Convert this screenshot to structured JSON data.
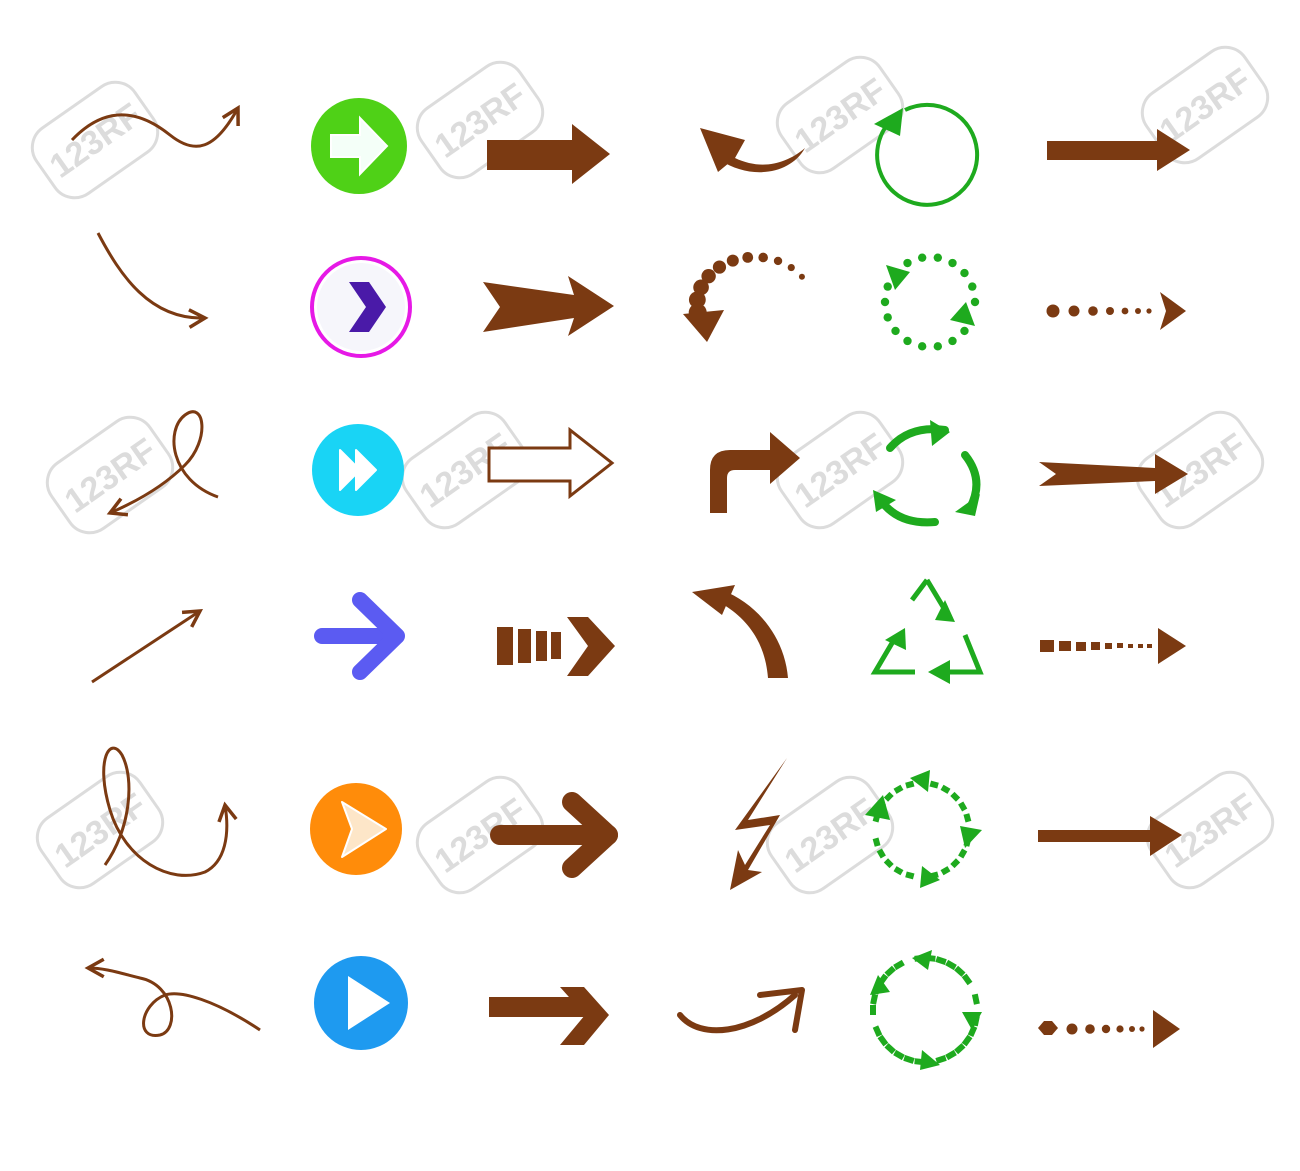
{
  "watermark": {
    "text": "123RF",
    "color": "#d9d9d9"
  },
  "colors": {
    "brown": "#7b3a12",
    "green": "#1eaa1e",
    "lime": "#4fd117",
    "magenta": "#e619e6",
    "indigo": "#4a1aa8",
    "cyan": "#19d4f5",
    "violet": "#5b5bf2",
    "orange": "#ff8c0a",
    "blue": "#1e9af0",
    "white": "#ffffff",
    "pale": "#f4fff8"
  },
  "icons": [
    "wavy-arrow-icon",
    "circle-arrow-green-icon",
    "bold-arrow-icon",
    "curved-back-arrow-icon",
    "circular-refresh-icon",
    "long-arrow-icon",
    "swoosh-arrow-icon",
    "chevron-circle-icon",
    "notched-arrow-icon",
    "dotted-curve-arrow-icon",
    "dotted-circle-arrows-icon",
    "dotted-arrow-icon",
    "loop-arrow-icon",
    "fast-forward-circle-icon",
    "outline-arrow-icon",
    "turn-right-arrow-icon",
    "recycle-circle-arrows-icon",
    "tapered-arrow-icon",
    "diagonal-arrow-icon",
    "rounded-arrow-icon",
    "striped-chevron-arrow-icon",
    "curved-up-left-arrow-icon",
    "recycle-triangle-icon",
    "dashed-arrow-icon",
    "loop-curl-arrow-icon",
    "play-circle-orange-icon",
    "thick-chevron-arrow-icon",
    "lightning-arrow-icon",
    "dashed-circle-arrows-icon",
    "plain-arrow-icon",
    "curly-back-arrow-icon",
    "play-circle-blue-icon",
    "block-chevron-arrow-icon",
    "smile-curve-arrow-icon",
    "dash-segment-circle-icon",
    "bead-dotted-arrow-icon"
  ]
}
